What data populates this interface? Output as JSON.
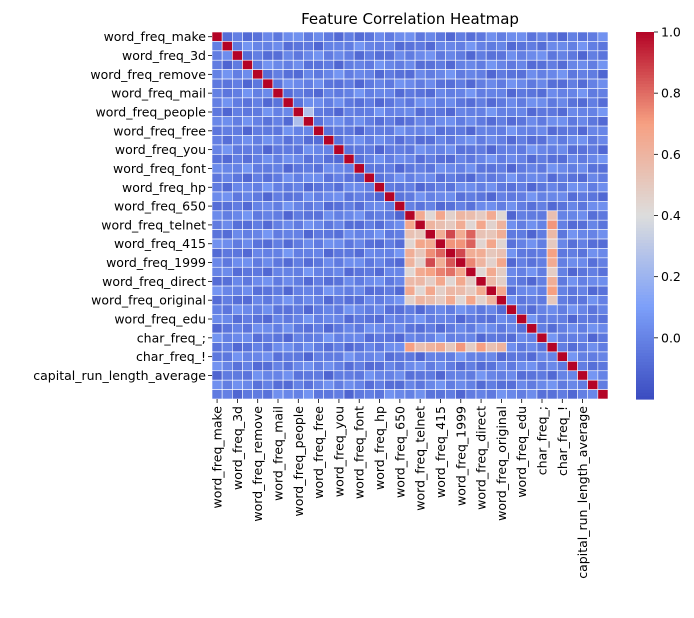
{
  "chart_data": {
    "type": "heatmap",
    "title": "Feature Correlation Heatmap",
    "row_tick_labels": [
      "word_freq_make",
      "word_freq_3d",
      "word_freq_remove",
      "word_freq_mail",
      "word_freq_people",
      "word_freq_free",
      "word_freq_you",
      "word_freq_font",
      "word_freq_hp",
      "word_freq_650",
      "word_freq_telnet",
      "word_freq_415",
      "word_freq_1999",
      "word_freq_direct",
      "word_freq_original",
      "word_freq_edu",
      "char_freq_;",
      "char_freq_!",
      "capital_run_length_average"
    ],
    "col_tick_labels": [
      "word_freq_make",
      "word_freq_3d",
      "word_freq_remove",
      "word_freq_mail",
      "word_freq_people",
      "word_freq_free",
      "word_freq_you",
      "word_freq_font",
      "word_freq_hp",
      "word_freq_650",
      "word_freq_telnet",
      "word_freq_415",
      "word_freq_1999",
      "word_freq_direct",
      "word_freq_original",
      "word_freq_edu",
      "char_freq_;",
      "char_freq_!",
      "capital_run_length_average"
    ],
    "n_features": 39,
    "tick_every": 2,
    "colormap": "coolwarm",
    "vmin": -0.2,
    "vmax": 1.0,
    "colorbar_ticks": [
      "1.0",
      "0.8",
      "0.6",
      "0.4",
      "0.2",
      "0.0"
    ],
    "colorbar_tick_values": [
      1.0,
      0.8,
      0.6,
      0.4,
      0.2,
      0.0
    ],
    "diagonal_value": 1.0,
    "background_value": -0.02,
    "blocks": [
      {
        "rows": [
          19,
          28
        ],
        "cols": [
          19,
          28
        ],
        "value": 0.55
      },
      {
        "rows": [
          21,
          25
        ],
        "cols": [
          21,
          25
        ],
        "value": 0.75
      },
      {
        "rows": [
          19,
          28
        ],
        "cols": [
          33,
          33
        ],
        "value": 0.6
      },
      {
        "rows": [
          33,
          33
        ],
        "cols": [
          19,
          28
        ],
        "value": 0.6
      },
      {
        "rows": [
          8,
          9
        ],
        "cols": [
          8,
          9
        ],
        "value": 0.15
      }
    ],
    "grid_lines": "white"
  },
  "colors": {
    "low": "#3b4cc0",
    "mid": "#dddddd",
    "high": "#b40426"
  }
}
